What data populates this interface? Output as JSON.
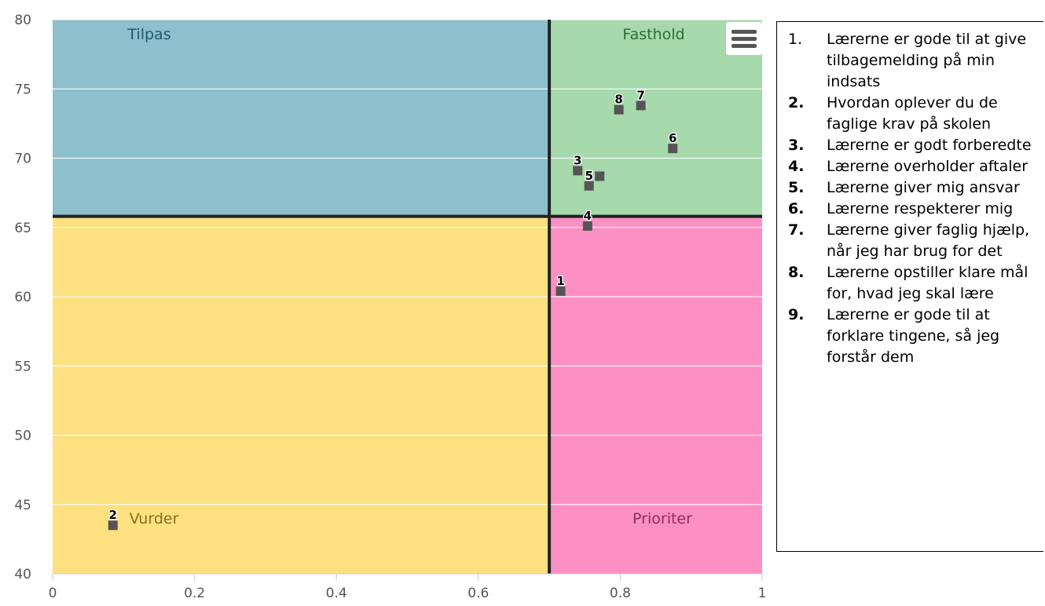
{
  "chart_data": {
    "type": "scatter",
    "title": "",
    "xlabel": "",
    "ylabel": "",
    "xlim": [
      0,
      1
    ],
    "ylim": [
      40,
      80
    ],
    "x_ticks": [
      "0",
      "0.2",
      "0.4",
      "0.6",
      "0.8",
      "1"
    ],
    "y_ticks": [
      "40",
      "45",
      "50",
      "55",
      "60",
      "65",
      "70",
      "75",
      "80"
    ],
    "x_divider": 0.7,
    "y_divider": 65.8,
    "grid": true,
    "quadrants": [
      {
        "label": "Tilpas",
        "position": "top-left",
        "color": "#8dbfcc",
        "text_color": "#1f5868"
      },
      {
        "label": "Fasthold",
        "position": "top-right",
        "color": "#a6d9ab",
        "text_color": "#2e6b3a"
      },
      {
        "label": "Vurder",
        "position": "bottom-left",
        "color": "#fde080",
        "text_color": "#8a6d1e"
      },
      {
        "label": "Prioriter",
        "position": "bottom-right",
        "color": "#fd90c3",
        "text_color": "#8e2d58"
      }
    ],
    "points": [
      {
        "label": "1",
        "x": 0.716,
        "y": 60.4
      },
      {
        "label": "2",
        "x": 0.085,
        "y": 43.5
      },
      {
        "label": "3",
        "x": 0.74,
        "y": 69.1
      },
      {
        "label": "4",
        "x": 0.754,
        "y": 65.1
      },
      {
        "label": "5",
        "x": 0.756,
        "y": 68.0
      },
      {
        "label": "",
        "x": 0.771,
        "y": 68.7
      },
      {
        "label": "6",
        "x": 0.874,
        "y": 70.7
      },
      {
        "label": "7",
        "x": 0.829,
        "y": 73.8
      },
      {
        "label": "8",
        "x": 0.798,
        "y": 73.5
      }
    ],
    "marker_color": "#555555"
  },
  "menu": {
    "icon": "hamburger-menu-icon"
  },
  "legend": {
    "items": [
      {
        "num": "1.",
        "bold": false,
        "text": "Lærerne er gode til at give tilbagemelding på min indsats"
      },
      {
        "num": "2.",
        "bold": true,
        "text": "Hvordan oplever du de faglige krav på skolen"
      },
      {
        "num": "3.",
        "bold": true,
        "text": "Lærerne er godt forberedte"
      },
      {
        "num": "4.",
        "bold": true,
        "text": "Lærerne overholder aftaler"
      },
      {
        "num": "5.",
        "bold": true,
        "text": "Lærerne giver mig ansvar"
      },
      {
        "num": "6.",
        "bold": true,
        "text": "Lærerne respekterer mig"
      },
      {
        "num": "7.",
        "bold": true,
        "text": "Lærerne giver faglig hjælp, når jeg har brug for det"
      },
      {
        "num": "8.",
        "bold": true,
        "text": "Lærerne opstiller klare mål for, hvad jeg skal lære"
      },
      {
        "num": "9.",
        "bold": true,
        "text": "Lærerne er gode til at forklare tingene, så jeg forstår dem"
      }
    ]
  }
}
